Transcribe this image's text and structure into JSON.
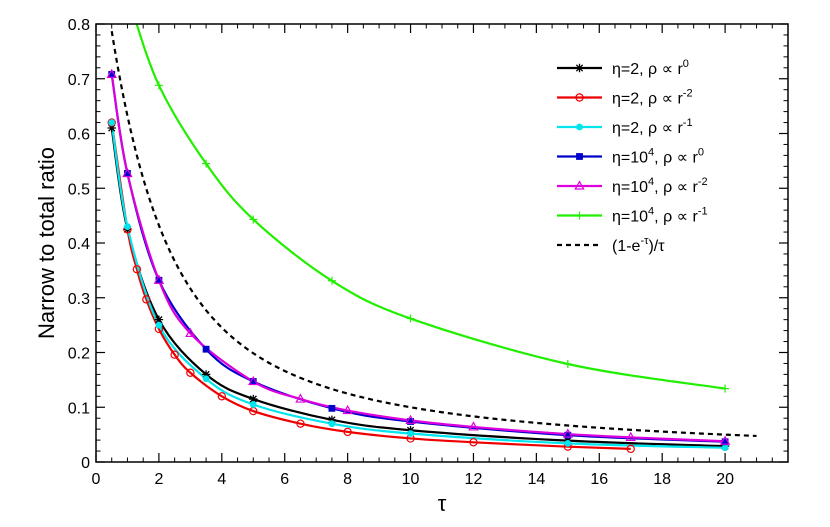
{
  "chart_data": {
    "type": "line",
    "title": "",
    "xlabel": "τ",
    "ylabel": "Narrow to total ratio",
    "xlim": [
      0,
      22
    ],
    "ylim": [
      0,
      0.8
    ],
    "xticks": [
      0,
      2,
      4,
      6,
      8,
      10,
      12,
      14,
      16,
      18,
      20
    ],
    "yticks": [
      0,
      0.1,
      0.2,
      0.3,
      0.4,
      0.5,
      0.6,
      0.7,
      0.8
    ],
    "xtick_labels": [
      "0",
      "2",
      "4",
      "6",
      "8",
      "10",
      "12",
      "14",
      "16",
      "18",
      "20"
    ],
    "ytick_labels": [
      "0",
      "0.1",
      "0.2",
      "0.3",
      "0.4",
      "0.5",
      "0.6",
      "0.7",
      "0.8"
    ],
    "grid": false,
    "legend_position": "top-right",
    "series": [
      {
        "name": "η=2, ρ ∝ r^0",
        "legend": {
          "pre": "η=2, ρ ∝ r",
          "sup_a": "",
          "mid": "",
          "sup_b": "0",
          "post": ""
        },
        "color": "#000000",
        "marker": "star",
        "line": "solid",
        "x": [
          0.5,
          1,
          2,
          3.5,
          5,
          7.5,
          10,
          15,
          20
        ],
        "y": [
          0.61,
          0.425,
          0.26,
          0.16,
          0.115,
          0.077,
          0.058,
          0.039,
          0.029
        ]
      },
      {
        "name": "η=2, ρ ∝ r^-2",
        "legend": {
          "pre": "η=2, ρ ∝ r",
          "sup_a": "",
          "mid": "",
          "sup_b": "-2",
          "post": ""
        },
        "color": "#ee0000",
        "marker": "circle-open",
        "line": "solid",
        "x": [
          0.5,
          1,
          1.3,
          1.6,
          2,
          2.5,
          3,
          4,
          5,
          6.5,
          8,
          10,
          12,
          15,
          17
        ],
        "y": [
          0.62,
          0.425,
          0.352,
          0.297,
          0.243,
          0.196,
          0.163,
          0.12,
          0.093,
          0.07,
          0.055,
          0.043,
          0.036,
          0.028,
          0.024
        ]
      },
      {
        "name": "η=2, ρ ∝ r^-1",
        "legend": {
          "pre": "η=2, ρ ∝ r",
          "sup_a": "",
          "mid": "",
          "sup_b": "-1",
          "post": ""
        },
        "color": "#00e5ee",
        "marker": "circle-filled",
        "line": "solid",
        "x": [
          0.5,
          1,
          2,
          3.5,
          5,
          7.5,
          10,
          15,
          20
        ],
        "y": [
          0.62,
          0.43,
          0.25,
          0.152,
          0.105,
          0.07,
          0.052,
          0.034,
          0.026
        ]
      },
      {
        "name": "η=10^4, ρ ∝ r^0",
        "legend": {
          "pre": "η=10",
          "sup_a": "4",
          "mid": ", ρ ∝ r",
          "sup_b": "0",
          "post": ""
        },
        "color": "#0000cc",
        "marker": "square",
        "line": "solid",
        "x": [
          0.5,
          1,
          2,
          3.5,
          5,
          7.5,
          10,
          15,
          20
        ],
        "y": [
          0.708,
          0.527,
          0.332,
          0.206,
          0.147,
          0.098,
          0.074,
          0.049,
          0.037
        ]
      },
      {
        "name": "η=10^4, ρ ∝ r^-2",
        "legend": {
          "pre": "η=10",
          "sup_a": "4",
          "mid": ", ρ ∝ r",
          "sup_b": "-2",
          "post": ""
        },
        "color": "#dd00dd",
        "marker": "triangle-open",
        "line": "solid",
        "x": [
          0.5,
          1,
          2,
          3,
          5,
          6.5,
          8,
          10,
          12,
          15,
          17,
          20
        ],
        "y": [
          0.708,
          0.527,
          0.332,
          0.235,
          0.147,
          0.115,
          0.094,
          0.076,
          0.064,
          0.051,
          0.045,
          0.038
        ]
      },
      {
        "name": "η=10^4, ρ ∝ r^-1",
        "legend": {
          "pre": "η=10",
          "sup_a": "4",
          "mid": ", ρ ∝ r",
          "sup_b": "-1",
          "post": ""
        },
        "color": "#22ee00",
        "marker": "plus",
        "line": "solid",
        "x": [
          1.1,
          2,
          3.5,
          5,
          7.5,
          10,
          15,
          20
        ],
        "y": [
          0.835,
          0.688,
          0.545,
          0.443,
          0.331,
          0.262,
          0.179,
          0.134
        ]
      },
      {
        "name": "(1-e^-τ)/τ",
        "legend": {
          "pre": "(1-e",
          "sup_a": "-τ",
          "mid": ")/τ",
          "sup_b": "",
          "post": ""
        },
        "color": "#000000",
        "marker": "none",
        "line": "dashed",
        "function": "(1-exp(-t))/t",
        "x_range": [
          0.5,
          21
        ]
      }
    ]
  }
}
